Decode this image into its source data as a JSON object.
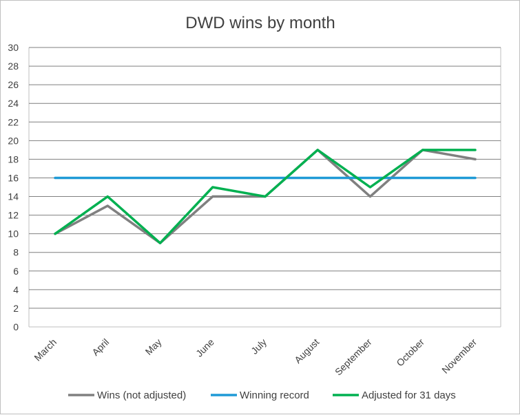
{
  "chart_data": {
    "type": "line",
    "title": "DWD wins by month",
    "xlabel": "",
    "ylabel": "",
    "categories": [
      "March",
      "April",
      "May",
      "June",
      "July",
      "August",
      "September",
      "October",
      "November"
    ],
    "ylim": [
      0,
      30
    ],
    "ytick_step": 2,
    "grid": true,
    "legend_position": "bottom",
    "series": [
      {
        "name": "Wins (not adjusted)",
        "color": "#808080",
        "values": [
          10,
          13,
          9,
          14,
          14,
          19,
          14,
          19,
          18
        ]
      },
      {
        "name": "Winning record",
        "color": "#1f9ad6",
        "values": [
          16,
          16,
          16,
          16,
          16,
          16,
          16,
          16,
          16
        ]
      },
      {
        "name": "Adjusted for 31 days",
        "color": "#00b050",
        "values": [
          10,
          14,
          9,
          15,
          14,
          19,
          15,
          19,
          19
        ]
      }
    ]
  }
}
